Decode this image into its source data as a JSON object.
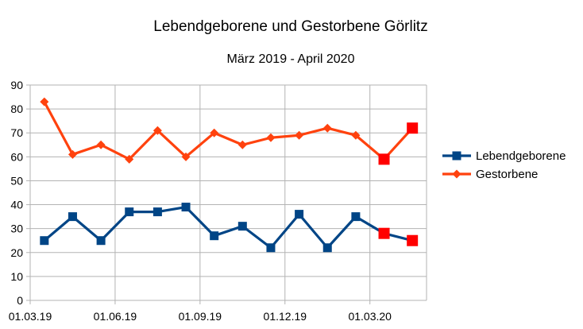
{
  "chart_data": {
    "type": "line",
    "title": "Lebendgeborene und Gestorbene Görlitz",
    "subtitle": "März 2019 - April 2020",
    "xlabel": "",
    "ylabel": "",
    "ylim": [
      0,
      90
    ],
    "yticks": [
      "0",
      "10",
      "20",
      "30",
      "40",
      "50",
      "60",
      "70",
      "80",
      "90"
    ],
    "x_tick_labels": [
      "01.03.19",
      "01.06.19",
      "01.09.19",
      "01.12.19",
      "01.03.20"
    ],
    "x": [
      "2019-03",
      "2019-04",
      "2019-05",
      "2019-06",
      "2019-07",
      "2019-08",
      "2019-09",
      "2019-10",
      "2019-11",
      "2019-12",
      "2020-01",
      "2020-02",
      "2020-03",
      "2020-04"
    ],
    "grid": true,
    "legend_position": "right",
    "series": [
      {
        "name": "Lebendgeborene",
        "color": "#004586",
        "marker": "square",
        "values": [
          25,
          35,
          25,
          37,
          37,
          39,
          27,
          31,
          22,
          36,
          22,
          35,
          28,
          25
        ],
        "highlight_indices": [
          12,
          13
        ],
        "highlight_color": "#ff0000"
      },
      {
        "name": "Gestorbene",
        "color": "#ff420e",
        "marker": "diamond",
        "values": [
          83,
          61,
          65,
          59,
          71,
          60,
          70,
          65,
          68,
          69,
          72,
          69,
          59,
          72
        ],
        "highlight_indices": [
          12,
          13
        ],
        "highlight_color": "#ff0000"
      }
    ]
  }
}
